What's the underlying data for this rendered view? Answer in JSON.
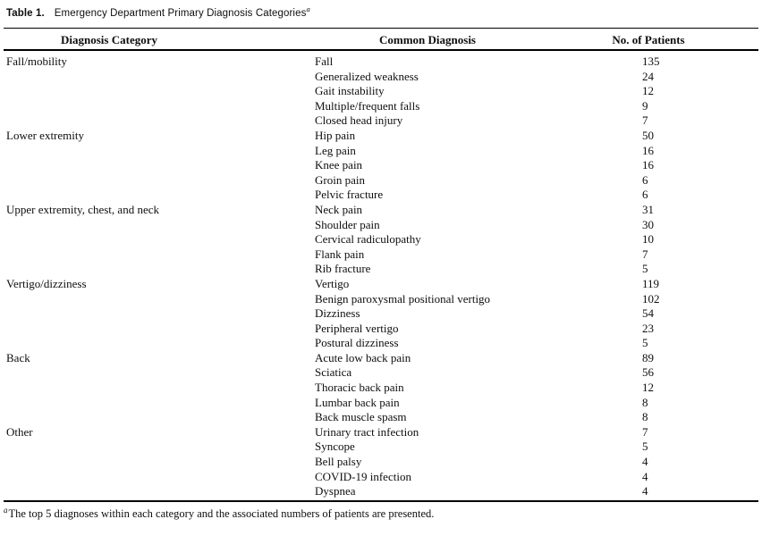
{
  "title": {
    "label": "Table 1.",
    "text": "Emergency Department Primary Diagnosis Categories",
    "footnote_marker": "a"
  },
  "table": {
    "columns": [
      "Diagnosis Category",
      "Common Diagnosis",
      "No. of Patients"
    ],
    "sections": [
      {
        "category": "Fall/mobility",
        "rows": [
          {
            "diagnosis": "Fall",
            "patients": 135
          },
          {
            "diagnosis": "Generalized weakness",
            "patients": 24
          },
          {
            "diagnosis": "Gait instability",
            "patients": 12
          },
          {
            "diagnosis": "Multiple/frequent falls",
            "patients": 9
          },
          {
            "diagnosis": "Closed head injury",
            "patients": 7
          }
        ]
      },
      {
        "category": "Lower extremity",
        "rows": [
          {
            "diagnosis": "Hip pain",
            "patients": 50
          },
          {
            "diagnosis": "Leg pain",
            "patients": 16
          },
          {
            "diagnosis": "Knee pain",
            "patients": 16
          },
          {
            "diagnosis": "Groin pain",
            "patients": 6
          },
          {
            "diagnosis": "Pelvic fracture",
            "patients": 6
          }
        ]
      },
      {
        "category": "Upper extremity, chest, and neck",
        "rows": [
          {
            "diagnosis": "Neck pain",
            "patients": 31
          },
          {
            "diagnosis": "Shoulder pain",
            "patients": 30
          },
          {
            "diagnosis": "Cervical radiculopathy",
            "patients": 10
          },
          {
            "diagnosis": "Flank pain",
            "patients": 7
          },
          {
            "diagnosis": "Rib fracture",
            "patients": 5
          }
        ]
      },
      {
        "category": "Vertigo/dizziness",
        "rows": [
          {
            "diagnosis": "Vertigo",
            "patients": 119
          },
          {
            "diagnosis": "Benign paroxysmal positional vertigo",
            "patients": 102
          },
          {
            "diagnosis": "Dizziness",
            "patients": 54
          },
          {
            "diagnosis": "Peripheral vertigo",
            "patients": 23
          },
          {
            "diagnosis": "Postural dizziness",
            "patients": 5
          }
        ]
      },
      {
        "category": "Back",
        "rows": [
          {
            "diagnosis": "Acute low back pain",
            "patients": 89
          },
          {
            "diagnosis": "Sciatica",
            "patients": 56
          },
          {
            "diagnosis": "Thoracic back pain",
            "patients": 12
          },
          {
            "diagnosis": "Lumbar back pain",
            "patients": 8
          },
          {
            "diagnosis": "Back muscle spasm",
            "patients": 8
          }
        ]
      },
      {
        "category": "Other",
        "rows": [
          {
            "diagnosis": "Urinary tract infection",
            "patients": 7
          },
          {
            "diagnosis": "Syncope",
            "patients": 5
          },
          {
            "diagnosis": "Bell palsy",
            "patients": 4
          },
          {
            "diagnosis": "COVID-19 infection",
            "patients": 4
          },
          {
            "diagnosis": "Dyspnea",
            "patients": 4
          }
        ]
      }
    ]
  },
  "footnote": {
    "marker": "a",
    "text": "The top 5 diagnoses within each category and the associated numbers of patients are presented."
  },
  "colors": {
    "text": "#0e0e0e",
    "rule": "#000000",
    "background": "#ffffff"
  }
}
